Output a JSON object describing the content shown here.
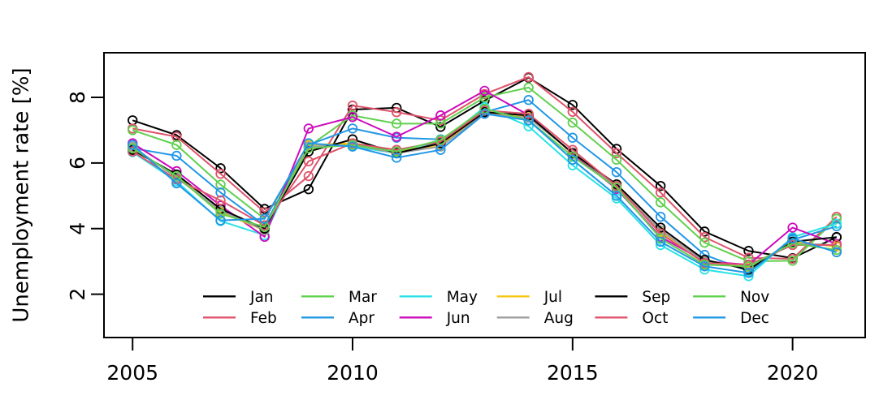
{
  "figure": {
    "background": "#ffffff",
    "text_color": "#000000"
  },
  "chart_data": {
    "type": "line",
    "title": "",
    "xlabel": "",
    "ylabel": "Unemployment rate [%]",
    "marker": "open-circle",
    "grid": false,
    "legend_position": "bottom-inside",
    "legend_columns": [
      [
        "Jan",
        "Feb"
      ],
      [
        "Mar",
        "Apr"
      ],
      [
        "May",
        "Jun"
      ],
      [
        "Jul",
        "Aug"
      ],
      [
        "Sep",
        "Oct"
      ],
      [
        "Nov",
        "Dec"
      ]
    ],
    "x": [
      2005,
      2006,
      2007,
      2008,
      2009,
      2010,
      2011,
      2012,
      2013,
      2014,
      2015,
      2016,
      2017,
      2018,
      2019,
      2020,
      2021
    ],
    "x_ticks": [
      2005,
      2010,
      2015,
      2020
    ],
    "y_ticks": [
      2,
      4,
      6,
      8
    ],
    "x_domain": [
      2004.35,
      2021.65
    ],
    "y_domain": [
      0.68,
      9.36
    ],
    "series": [
      {
        "name": "Jan",
        "color": "#000000",
        "values": [
          7.3,
          6.85,
          5.84,
          4.6,
          5.2,
          7.63,
          7.68,
          7.1,
          7.9,
          8.6,
          7.77,
          6.43,
          5.3,
          3.91,
          3.32,
          3.1,
          3.74
        ]
      },
      {
        "name": "Feb",
        "color": "#DF536B",
        "values": [
          7.05,
          6.8,
          5.67,
          4.5,
          5.6,
          7.75,
          7.55,
          7.3,
          8.1,
          8.62,
          7.56,
          6.3,
          5.1,
          3.74,
          3.11,
          3.08,
          4.36
        ]
      },
      {
        "name": "Mar",
        "color": "#61D04F",
        "values": [
          7.0,
          6.55,
          5.34,
          4.3,
          6.5,
          7.45,
          7.2,
          7.2,
          8.0,
          8.3,
          7.23,
          6.1,
          4.8,
          3.57,
          3.0,
          3.02,
          4.3
        ]
      },
      {
        "name": "Apr",
        "color": "#2297E6",
        "values": [
          6.45,
          6.22,
          5.1,
          4.1,
          6.55,
          7.05,
          6.77,
          6.72,
          7.55,
          7.92,
          6.77,
          5.72,
          4.36,
          3.2,
          2.7,
          3.66,
          4.07
        ]
      },
      {
        "name": "May",
        "color": "#28E2E5",
        "values": [
          6.33,
          5.44,
          4.23,
          3.8,
          6.6,
          6.5,
          6.3,
          6.63,
          7.7,
          7.12,
          5.93,
          4.92,
          3.5,
          2.75,
          2.55,
          3.74,
          4.15
        ]
      },
      {
        "name": "Jun",
        "color": "#CD0BBC",
        "values": [
          6.6,
          5.75,
          4.7,
          3.75,
          7.05,
          7.4,
          6.8,
          7.45,
          8.2,
          7.46,
          6.28,
          5.21,
          3.75,
          3.0,
          2.9,
          4.03,
          3.53
        ]
      },
      {
        "name": "Jul",
        "color": "#F5C710",
        "values": [
          6.45,
          5.6,
          4.5,
          3.95,
          6.55,
          6.6,
          6.35,
          6.55,
          7.55,
          7.4,
          6.3,
          5.3,
          3.9,
          3.03,
          2.8,
          3.6,
          3.45
        ]
      },
      {
        "name": "Aug",
        "color": "#9E9E9E",
        "values": [
          6.5,
          5.55,
          4.55,
          3.95,
          6.5,
          6.55,
          6.3,
          6.5,
          7.5,
          7.38,
          6.32,
          5.28,
          3.95,
          3.0,
          2.78,
          3.55,
          3.5
        ]
      },
      {
        "name": "Sep",
        "color": "#000000",
        "values": [
          6.4,
          5.65,
          4.6,
          4.0,
          6.35,
          6.72,
          6.3,
          6.6,
          7.55,
          7.45,
          6.3,
          5.35,
          4.03,
          3.05,
          2.75,
          3.6,
          3.74
        ]
      },
      {
        "name": "Oct",
        "color": "#DF536B",
        "values": [
          6.35,
          5.5,
          4.86,
          4.1,
          6.05,
          6.6,
          6.4,
          6.65,
          7.6,
          7.5,
          6.4,
          5.3,
          3.85,
          2.95,
          2.9,
          3.5,
          3.5
        ]
      },
      {
        "name": "Nov",
        "color": "#61D04F",
        "values": [
          6.45,
          5.6,
          4.45,
          4.05,
          6.45,
          6.55,
          6.35,
          6.7,
          7.65,
          7.3,
          6.2,
          5.25,
          3.7,
          2.9,
          2.85,
          3.55,
          3.35
        ]
      },
      {
        "name": "Dec",
        "color": "#2297E6",
        "values": [
          6.55,
          5.38,
          4.25,
          4.3,
          6.6,
          6.5,
          6.16,
          6.4,
          7.5,
          7.3,
          6.1,
          5.0,
          3.6,
          2.85,
          2.65,
          3.7,
          3.28
        ]
      }
    ]
  }
}
